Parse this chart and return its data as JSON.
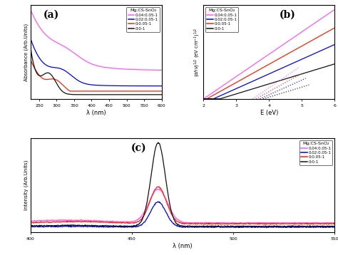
{
  "colors": {
    "magenta": "#FF55FF",
    "blue": "#0000EE",
    "red": "#FF2200",
    "black": "#111111"
  },
  "legend_labels": [
    "0.04:0.05-1",
    "0.02:0.05-1",
    "0:0.05-1",
    "0:0-1"
  ],
  "legend_title": "Mg:CS-SnO₂",
  "panel_a": {
    "xlabel": "λ (nm)",
    "ylabel": "Absorbance (Arb.Units)",
    "label": "(a)",
    "xlim": [
      225,
      600
    ],
    "xticks": [
      250,
      300,
      350,
      400,
      450,
      500,
      550,
      600
    ]
  },
  "panel_b": {
    "xlabel": "E (eV)",
    "label": "(b)",
    "xlim": [
      2,
      6
    ],
    "xticks": [
      2,
      3,
      4,
      5,
      6
    ]
  },
  "panel_c": {
    "xlabel": "λ (nm)",
    "ylabel": "Intensity (Arb.Units)",
    "label": "(c)",
    "xlim": [
      400,
      550
    ],
    "xticks": [
      400,
      450,
      500,
      550
    ]
  },
  "background": "#ffffff"
}
